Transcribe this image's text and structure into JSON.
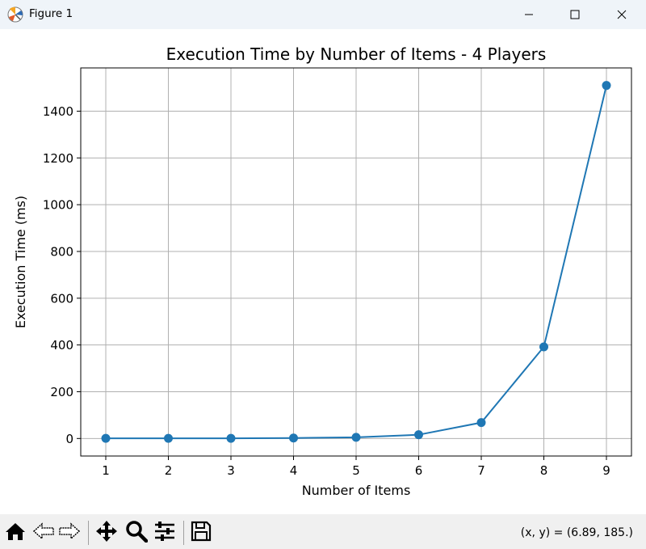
{
  "window": {
    "title": "Figure 1",
    "icons": [
      "matplotlib-icon",
      "minimize-icon",
      "maximize-icon",
      "close-icon"
    ]
  },
  "chart_data": {
    "type": "line",
    "title": "Execution Time by Number of Items - 4 Players",
    "xlabel": "Number of Items",
    "ylabel": "Execution Time (ms)",
    "x": [
      1,
      2,
      3,
      4,
      5,
      6,
      7,
      8,
      9
    ],
    "series": [
      {
        "name": "",
        "values": [
          0.5,
          0.5,
          0.8,
          2,
          5,
          16,
          68,
          392,
          1510
        ],
        "color": "#1f77b4",
        "marker": "circle"
      }
    ],
    "xlim": [
      0.6,
      9.4
    ],
    "ylim": [
      -75,
      1585
    ],
    "xticks": [
      1,
      2,
      3,
      4,
      5,
      6,
      7,
      8,
      9
    ],
    "yticks": [
      0,
      200,
      400,
      600,
      800,
      1000,
      1200,
      1400
    ],
    "grid": true,
    "legend": "none"
  },
  "toolbar": {
    "icons": [
      "home-icon",
      "back-icon",
      "forward-icon",
      "pan-icon",
      "zoom-icon",
      "configure-subplots-icon",
      "save-icon"
    ],
    "coords": "(x, y) = (6.89, 185.)"
  }
}
